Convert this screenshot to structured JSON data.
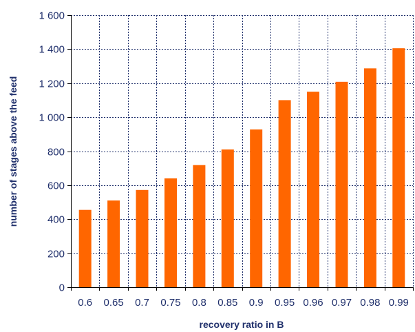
{
  "chart_data": {
    "type": "bar",
    "title": "",
    "xlabel": "recovery ratio in B",
    "ylabel": "number of stages above the feed",
    "categories": [
      "0.6",
      "0.65",
      "0.7",
      "0.75",
      "0.8",
      "0.85",
      "0.9",
      "0.95",
      "0.96",
      "0.97",
      "0.98",
      "0.99"
    ],
    "values": [
      455,
      510,
      572,
      640,
      718,
      810,
      928,
      1100,
      1150,
      1208,
      1287,
      1405
    ],
    "ylim": [
      0,
      1600
    ],
    "yticks": [
      0,
      200,
      400,
      600,
      800,
      1000,
      1200,
      1400,
      1600
    ],
    "ytick_labels": [
      "0",
      "200",
      "400",
      "600",
      "800",
      "1 000",
      "1 200",
      "1 400",
      "1 600"
    ],
    "grid": true,
    "legend": "none",
    "colors": {
      "bar": "#FF6600",
      "text": "#1F2F6B",
      "grid": "#1F2F6B",
      "axis": "#000000"
    }
  }
}
